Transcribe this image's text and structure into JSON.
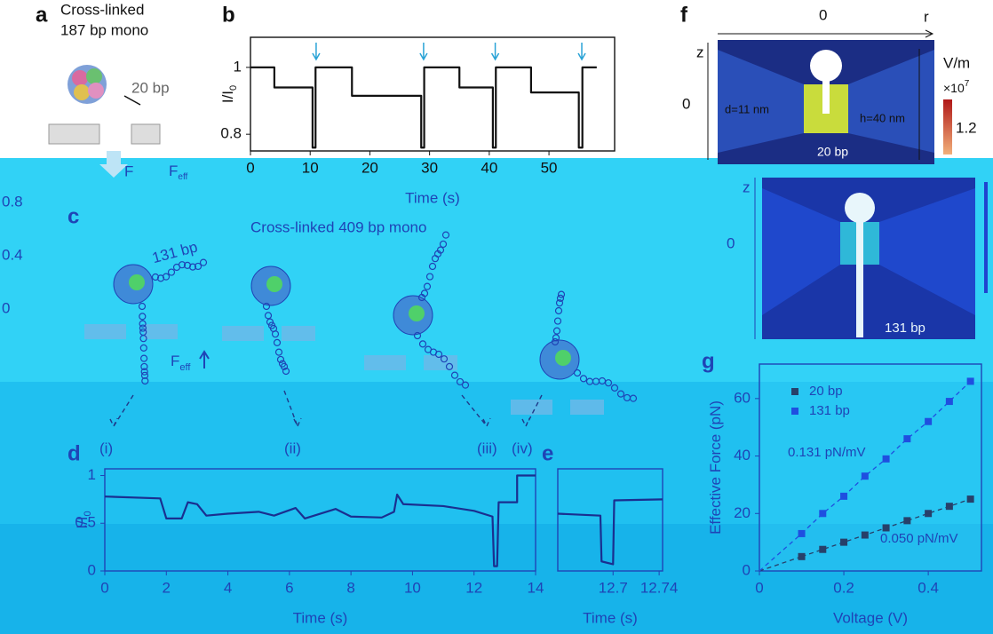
{
  "panels": {
    "a": {
      "label": "a",
      "title_lines": [
        "Cross-linked",
        "187 bp mono"
      ],
      "dna_label": "20 bp",
      "force": "F",
      "force2": "F",
      "force2_sub": "eff"
    },
    "c": {
      "label": "c",
      "title": "Cross-linked 409 bp mono",
      "dna_label": "131 bp",
      "force": "F",
      "force_sub": "eff"
    },
    "d": {
      "label": "d",
      "stages": [
        "(i)",
        "(ii)",
        "(iii)",
        "(iv)"
      ]
    },
    "e": {
      "label": "e"
    },
    "f": {
      "label": "f",
      "r_zero": "0",
      "r": "r",
      "z": "z",
      "z_zero": "0",
      "diameter": "d=11 nm",
      "height": "h=40 nm",
      "dna_top": "20 bp",
      "colorbar_unit": "V/m",
      "colorbar_scale": "×10",
      "colorbar_exp": "7",
      "colorbar_tick": 1.2,
      "z2": "z",
      "z2_zero": "0",
      "dna_bottom": "131 bp"
    },
    "g": {
      "label": "g"
    },
    "stray_yticks": [
      0.8,
      0.4,
      0
    ]
  },
  "chart_data": [
    {
      "type": "line",
      "ylabel": "I/I",
      "ylabel_sub": "0",
      "xlabel": "Time (s)",
      "x": [
        0,
        4,
        4,
        10.4,
        10.4,
        10.9,
        10.9,
        17,
        17,
        28.6,
        28.6,
        29.1,
        29.1,
        35,
        35,
        40.6,
        40.6,
        41.1,
        41.1,
        47,
        47,
        55,
        55,
        55.6,
        55.6,
        58
      ],
      "values": [
        1,
        1,
        0.94,
        0.94,
        0.76,
        0.76,
        1,
        1,
        0.915,
        0.915,
        0.76,
        0.76,
        1,
        1,
        0.94,
        0.94,
        0.76,
        0.76,
        1,
        1,
        0.925,
        0.925,
        0.76,
        0.76,
        1,
        1
      ],
      "events": [
        11,
        29,
        41,
        55.5
      ],
      "event_color": "#2aa3d6",
      "color": "#111111",
      "xlim": [
        0,
        61
      ],
      "ylim": [
        0.75,
        1.09
      ],
      "xticks": [
        0,
        10,
        20,
        30,
        40,
        50
      ],
      "yticks": [
        0.8,
        1
      ]
    },
    {
      "type": "line",
      "ylabel": "I/I",
      "ylabel_sub": "0",
      "xlabel": "Time (s)",
      "x": [
        0,
        1.8,
        2.0,
        2.5,
        2.7,
        3.0,
        3.3,
        4,
        5,
        5.5,
        6.2,
        6.5,
        7,
        7.5,
        8,
        9,
        9.4,
        9.5,
        9.7,
        11,
        12,
        12.6,
        12.65,
        12.75,
        12.8,
        13.4,
        13.4,
        14
      ],
      "values": [
        0.78,
        0.76,
        0.55,
        0.55,
        0.72,
        0.7,
        0.58,
        0.6,
        0.62,
        0.58,
        0.66,
        0.55,
        0.6,
        0.65,
        0.57,
        0.56,
        0.62,
        0.8,
        0.7,
        0.68,
        0.63,
        0.57,
        0.05,
        0.05,
        0.72,
        0.72,
        1,
        1
      ],
      "color": "#1a2f90",
      "xlim": [
        0,
        14
      ],
      "ylim": [
        0,
        1.07
      ],
      "xticks": [
        0,
        2,
        4,
        6,
        8,
        10,
        12,
        14
      ],
      "yticks": [
        0,
        0.5,
        1
      ]
    },
    {
      "type": "line",
      "xlabel": "Time (s)",
      "x": [
        12.652,
        12.689,
        12.69,
        12.7,
        12.701,
        12.743
      ],
      "values": [
        0.6,
        0.58,
        0.1,
        0.07,
        0.74,
        0.75
      ],
      "color": "#1a2f90",
      "xlim": [
        12.652,
        12.743
      ],
      "ylim": [
        0,
        1.07
      ],
      "xticks": [
        12.7,
        12.74
      ]
    },
    {
      "type": "scatter",
      "xlabel": "Voltage (V)",
      "ylabel": "Effective Force (pN)",
      "x": [
        0.1,
        0.15,
        0.2,
        0.25,
        0.3,
        0.35,
        0.4,
        0.45,
        0.5
      ],
      "series": [
        {
          "name": "20 bp",
          "color": "#27406a",
          "values": [
            5,
            7.5,
            10,
            12.5,
            15,
            17.5,
            20,
            22.5,
            25
          ]
        },
        {
          "name": "131 bp",
          "color": "#1f4fe0",
          "values": [
            13,
            20,
            26,
            33,
            39,
            46,
            52,
            59,
            66
          ]
        }
      ],
      "annotations": [
        "0.131 pN/mV",
        "0.050 pN/mV"
      ],
      "xlim": [
        0,
        0.526
      ],
      "ylim": [
        0,
        72
      ],
      "xticks": [
        0,
        0.2,
        0.4
      ],
      "yticks": [
        0,
        20,
        40,
        60
      ]
    }
  ]
}
